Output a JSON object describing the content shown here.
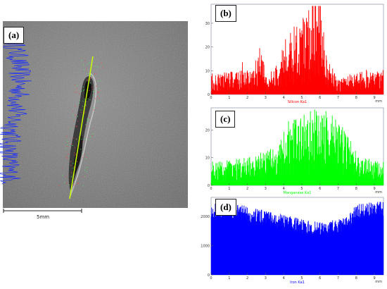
{
  "sem": {
    "label": "(a)",
    "scale_bar_label": "5mm"
  },
  "chart_data": [
    {
      "type": "bar",
      "label": "(b)",
      "xlabel": "Silicon Ka1",
      "x_unit": "mm",
      "xlim": [
        0,
        9.5
      ],
      "ylim": [
        0,
        38
      ],
      "x_ticks": [
        0,
        1,
        2,
        3,
        4,
        5,
        6,
        7,
        8,
        9
      ],
      "y_ticks": [
        0,
        10,
        20,
        30
      ],
      "color": "#ff0000",
      "profile": [
        [
          0,
          5
        ],
        [
          2.3,
          6
        ],
        [
          2.7,
          12
        ],
        [
          3.1,
          5
        ],
        [
          3.6,
          7
        ],
        [
          4.2,
          15
        ],
        [
          5.0,
          18
        ],
        [
          5.6,
          22
        ],
        [
          6.0,
          26
        ],
        [
          6.3,
          10
        ],
        [
          7.0,
          4
        ],
        [
          7.6,
          5
        ],
        [
          9.2,
          6
        ]
      ]
    },
    {
      "type": "bar",
      "label": "(c)",
      "xlabel": "Manganese Ka1",
      "x_unit": "mm",
      "xlim": [
        0,
        9.5
      ],
      "ylim": [
        0,
        28
      ],
      "x_ticks": [
        0,
        1,
        2,
        3,
        4,
        5,
        6,
        7,
        8,
        9
      ],
      "y_ticks": [
        0,
        10,
        20
      ],
      "color": "#00ff00",
      "profile": [
        [
          0,
          5
        ],
        [
          2.0,
          6
        ],
        [
          3.0,
          7
        ],
        [
          3.8,
          9
        ],
        [
          4.3,
          14
        ],
        [
          5.0,
          15
        ],
        [
          6.0,
          16
        ],
        [
          7.0,
          14
        ],
        [
          7.6,
          10
        ],
        [
          8.2,
          6
        ],
        [
          9.2,
          5
        ]
      ]
    },
    {
      "type": "bar",
      "label": "(d)",
      "xlabel": "Iron Ka1",
      "x_unit": "mm",
      "xlim": [
        0,
        9.5
      ],
      "ylim": [
        0,
        2650
      ],
      "x_ticks": [
        0,
        1,
        2,
        3,
        4,
        5,
        6,
        7,
        8,
        9
      ],
      "y_ticks": [
        0,
        1000,
        2000
      ],
      "color": "#0000ff",
      "profile": [
        [
          0,
          2200
        ],
        [
          1.5,
          2150
        ],
        [
          3.0,
          1950
        ],
        [
          4.0,
          1800
        ],
        [
          5.0,
          1650
        ],
        [
          6.0,
          1550
        ],
        [
          7.0,
          1650
        ],
        [
          7.6,
          1800
        ],
        [
          8.0,
          2150
        ],
        [
          9.2,
          2250
        ]
      ]
    }
  ]
}
